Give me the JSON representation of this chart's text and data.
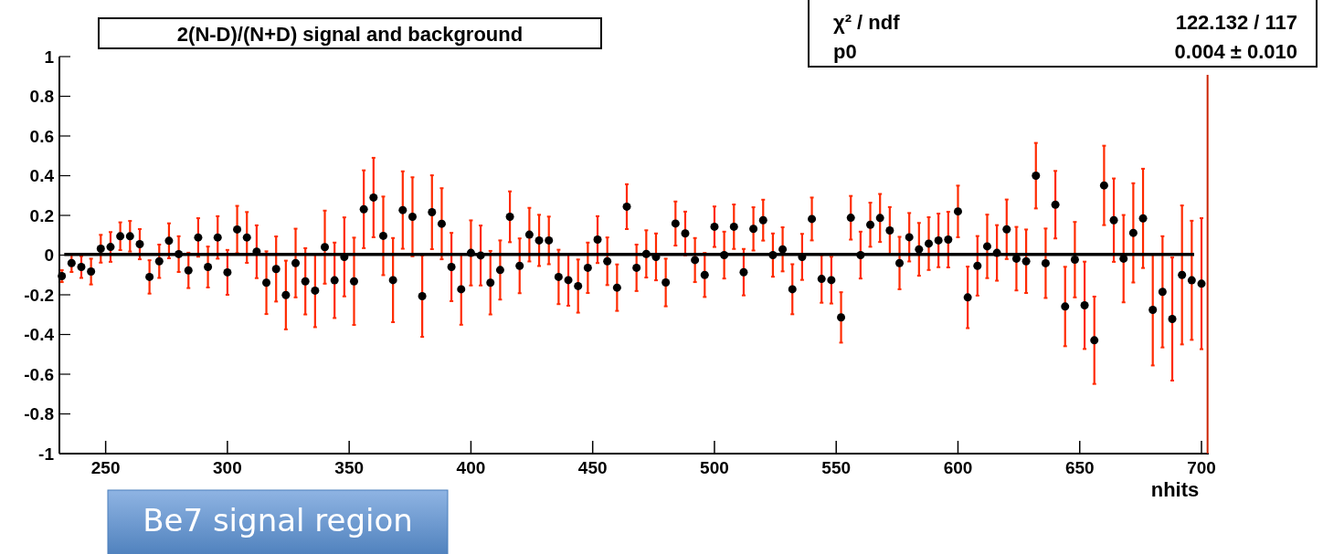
{
  "chart_data": {
    "type": "scatter",
    "title": "2(N-D)/(N+D) signal and background",
    "xlabel": "nhits",
    "annotations": [
      "χ² / ndf",
      "122.132 / 117",
      "p0",
      "0.004 ± 0.010",
      "Be7 signal region"
    ],
    "xlim": [
      231,
      703
    ],
    "ylim": [
      -1,
      1
    ],
    "xticks": [
      250,
      300,
      350,
      400,
      450,
      500,
      550,
      600,
      650,
      700
    ],
    "yticks": [
      -1,
      -0.8,
      -0.6,
      -0.4,
      -0.2,
      0,
      0.2,
      0.4,
      0.6,
      0.8,
      1
    ],
    "grid": false,
    "marker": "circle",
    "ref_lines": [
      {
        "axis": "x",
        "value": 702.5,
        "color": "#cc2200"
      }
    ],
    "series": [
      {
        "color": "#000000",
        "x": [
          232,
          236,
          240,
          244,
          248,
          252,
          256,
          260,
          264,
          268,
          272,
          276,
          280,
          284,
          288,
          292,
          296,
          300,
          304,
          308,
          312,
          316,
          320,
          324,
          328,
          332,
          336,
          340,
          344,
          348,
          352,
          356,
          360,
          364,
          368,
          372,
          376,
          380,
          384,
          388,
          392,
          396,
          400,
          404,
          408,
          412,
          416,
          420,
          424,
          428,
          432,
          436,
          440,
          444,
          448,
          452,
          456,
          460,
          464,
          468,
          472,
          476,
          480,
          484,
          488,
          492,
          496,
          500,
          504,
          508,
          512,
          516,
          520,
          524,
          528,
          532,
          536,
          540,
          544,
          548,
          552,
          556,
          560,
          564,
          568,
          572,
          576,
          580,
          584,
          588,
          592,
          596,
          600,
          604,
          608,
          612,
          616,
          620,
          624,
          628,
          632,
          636,
          640,
          644,
          648,
          652,
          656,
          660,
          664,
          668,
          672,
          676,
          680,
          684,
          688,
          692,
          696,
          700
        ],
        "values": [
          -0.106,
          -0.04,
          -0.06,
          -0.083,
          0.032,
          0.041,
          0.095,
          0.095,
          0.055,
          -0.11,
          -0.031,
          0.072,
          0.005,
          -0.077,
          0.089,
          -0.06,
          0.089,
          -0.087,
          0.129,
          0.089,
          0.017,
          -0.139,
          -0.07,
          -0.201,
          -0.04,
          -0.132,
          -0.179,
          0.04,
          -0.127,
          -0.009,
          -0.132,
          0.231,
          0.29,
          0.097,
          -0.126,
          0.227,
          0.193,
          -0.207,
          0.216,
          0.158,
          -0.06,
          -0.172,
          0.011,
          -0.002,
          -0.139,
          -0.075,
          0.193,
          -0.054,
          0.103,
          0.074,
          0.074,
          -0.11,
          -0.126,
          -0.156,
          -0.064,
          0.078,
          -0.031,
          -0.164,
          0.244,
          -0.064,
          0.006,
          -0.009,
          -0.138,
          0.159,
          0.109,
          -0.025,
          -0.1,
          0.143,
          0,
          0.143,
          -0.086,
          0.132,
          0.176,
          0,
          0.029,
          -0.172,
          -0.009,
          0.182,
          -0.12,
          -0.126,
          -0.314,
          0.188,
          0,
          0.153,
          0.187,
          0.124,
          -0.04,
          0.09,
          0.029,
          0.058,
          0.074,
          0.078,
          0.22,
          -0.213,
          -0.054,
          0.044,
          0.011,
          0.13,
          -0.018,
          -0.031,
          0.4,
          -0.041,
          0.254,
          -0.259,
          -0.023,
          -0.253,
          -0.429,
          0.351,
          0.176,
          -0.018,
          0.112,
          0.185,
          -0.276,
          -0.185,
          -0.322,
          -0.1,
          -0.127,
          -0.144
        ],
        "errors": [
          0.03,
          0.045,
          0.055,
          0.065,
          0.07,
          0.075,
          0.07,
          0.077,
          0.076,
          0.084,
          0.084,
          0.088,
          0.09,
          0.089,
          0.097,
          0.103,
          0.107,
          0.113,
          0.119,
          0.128,
          0.133,
          0.158,
          0.164,
          0.173,
          0.173,
          0.167,
          0.184,
          0.184,
          0.19,
          0.199,
          0.22,
          0.196,
          0.2,
          0.198,
          0.212,
          0.195,
          0.199,
          0.205,
          0.186,
          0.179,
          0.172,
          0.179,
          0.164,
          0.151,
          0.16,
          0.149,
          0.128,
          0.138,
          0.135,
          0.129,
          0.12,
          0.137,
          0.129,
          0.134,
          0.127,
          0.118,
          0.12,
          0.117,
          0.113,
          0.117,
          0.119,
          0.118,
          0.12,
          0.111,
          0.11,
          0.111,
          0.111,
          0.102,
          0.118,
          0.112,
          0.117,
          0.109,
          0.103,
          0.109,
          0.111,
          0.126,
          0.116,
          0.108,
          0.12,
          0.118,
          0.127,
          0.11,
          0.118,
          0.111,
          0.121,
          0.118,
          0.132,
          0.122,
          0.133,
          0.133,
          0.135,
          0.14,
          0.13,
          0.155,
          0.15,
          0.16,
          0.14,
          0.15,
          0.16,
          0.16,
          0.165,
          0.175,
          0.17,
          0.2,
          0.19,
          0.22,
          0.22,
          0.2,
          0.21,
          0.22,
          0.25,
          0.25,
          0.28,
          0.28,
          0.31,
          0.35,
          0.3,
          0.33
        ]
      },
      {
        "type": "line",
        "color": "#000000",
        "marker": "none",
        "x": [
          233,
          697
        ],
        "values": [
          0.004,
          0.004
        ]
      }
    ]
  }
}
